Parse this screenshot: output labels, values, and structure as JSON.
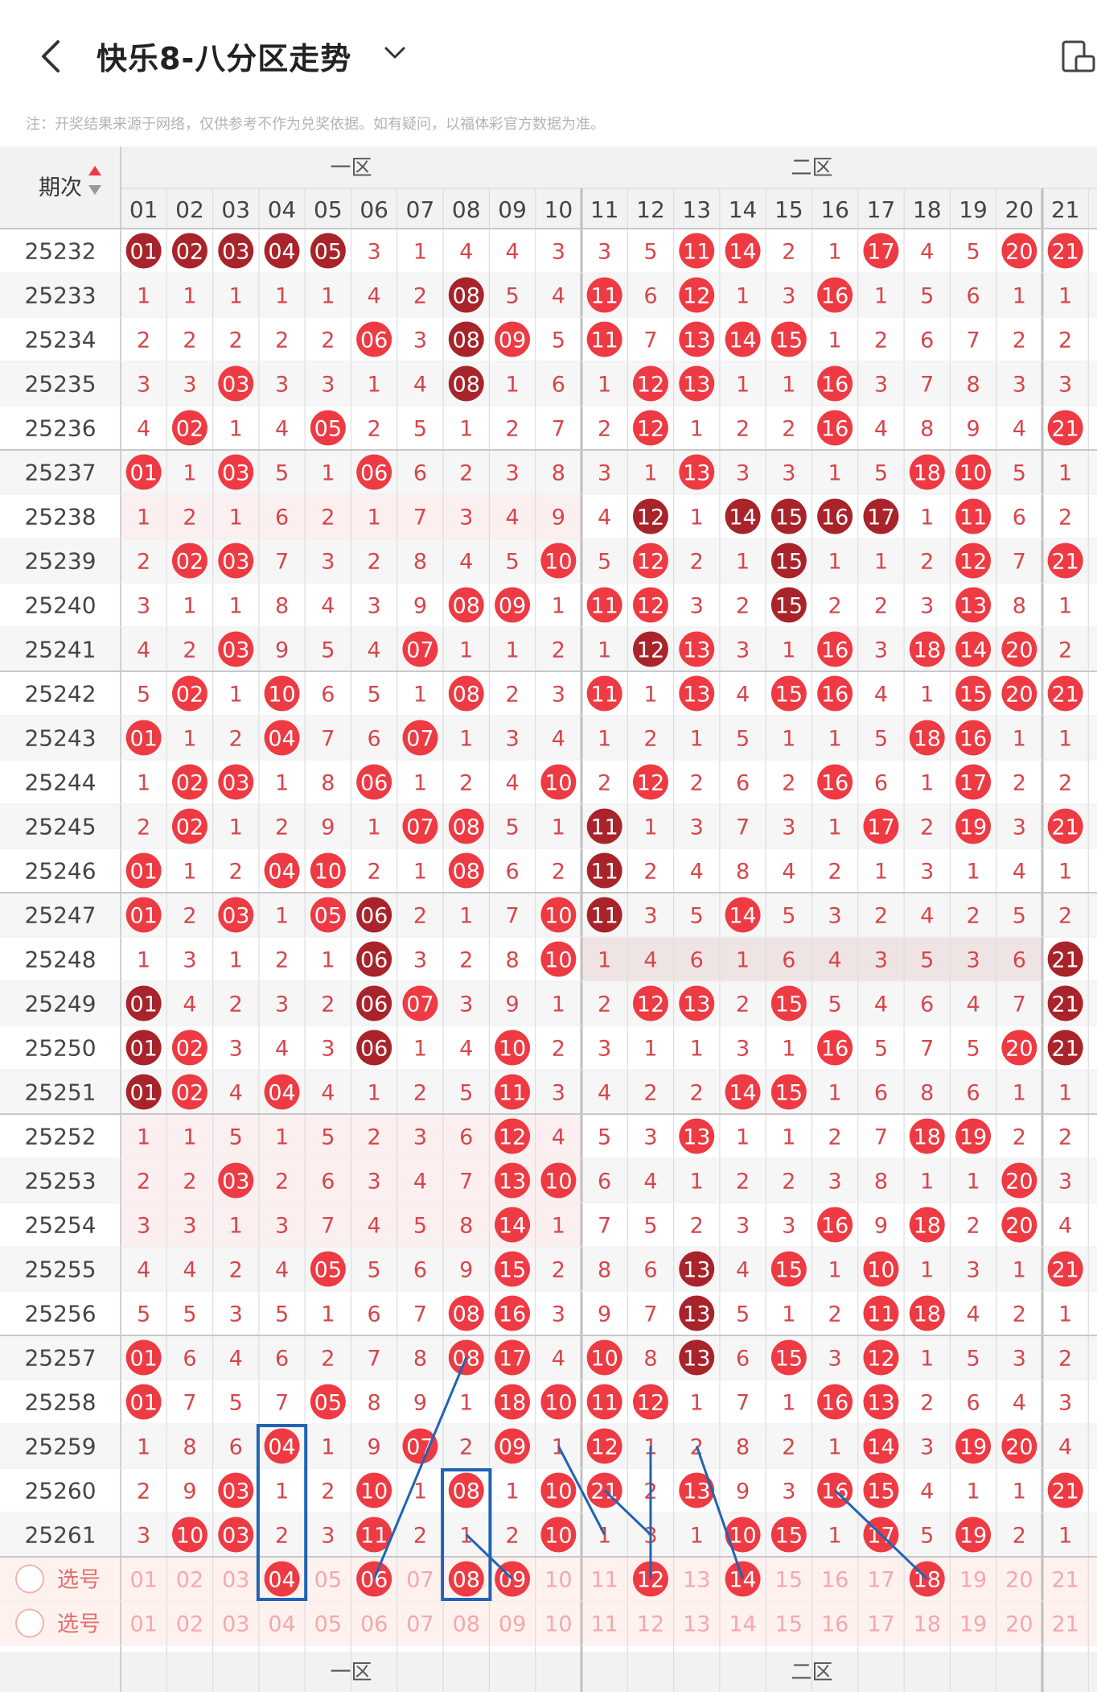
{
  "header": {
    "title": "快乐8-八分区走势",
    "back_icon": "back-arrow-icon",
    "dropdown_icon": "chevron-down-icon",
    "device_icon": "device-switch-icon"
  },
  "notice": "注：开奖结果来源于网络，仅供参考不作为兑奖依据。如有疑问，以福体彩官方数据为准。",
  "table": {
    "period_header": "期次",
    "zones": [
      "一区",
      "二区"
    ],
    "columns": [
      "01",
      "02",
      "03",
      "04",
      "05",
      "06",
      "07",
      "08",
      "09",
      "10",
      "11",
      "12",
      "13",
      "14",
      "15",
      "16",
      "17",
      "18",
      "19",
      "20",
      "21"
    ],
    "rows": [
      {
        "period": "25232",
        "cells": [
          "01",
          "02",
          "03",
          "04",
          "05",
          "3",
          "1",
          "4",
          "4",
          "3",
          "3",
          "5",
          "11",
          "14",
          "2",
          "1",
          "17",
          "4",
          "5",
          "20",
          "21"
        ]
      },
      {
        "period": "25233",
        "cells": [
          "1",
          "1",
          "1",
          "1",
          "1",
          "4",
          "2",
          "08",
          "5",
          "4",
          "11",
          "6",
          "12",
          "1",
          "3",
          "16",
          "1",
          "5",
          "6",
          "1",
          "1"
        ]
      },
      {
        "period": "25234",
        "cells": [
          "2",
          "2",
          "2",
          "2",
          "2",
          "06",
          "3",
          "08",
          "09",
          "5",
          "11",
          "7",
          "13",
          "14",
          "15",
          "1",
          "2",
          "6",
          "7",
          "2",
          "2"
        ]
      },
      {
        "period": "25235",
        "cells": [
          "3",
          "3",
          "03",
          "3",
          "3",
          "1",
          "4",
          "08",
          "1",
          "6",
          "1",
          "12",
          "13",
          "1",
          "1",
          "16",
          "3",
          "7",
          "8",
          "3",
          "3"
        ]
      },
      {
        "period": "25236",
        "cells": [
          "4",
          "02",
          "1",
          "4",
          "05",
          "2",
          "5",
          "1",
          "2",
          "7",
          "2",
          "12",
          "1",
          "2",
          "2",
          "16",
          "4",
          "8",
          "9",
          "4",
          "21"
        ]
      },
      {
        "period": "25237",
        "cells": [
          "01",
          "1",
          "03",
          "5",
          "1",
          "06",
          "6",
          "2",
          "3",
          "8",
          "3",
          "1",
          "13",
          "3",
          "3",
          "1",
          "5",
          "18",
          "10",
          "5",
          "1"
        ]
      },
      {
        "period": "25238",
        "cells": [
          "1",
          "2",
          "1",
          "6",
          "2",
          "1",
          "7",
          "3",
          "4",
          "9",
          "4",
          "12",
          "1",
          "14",
          "15",
          "16",
          "17",
          "1",
          "11",
          "6",
          "2"
        ]
      },
      {
        "period": "25239",
        "cells": [
          "2",
          "02",
          "03",
          "7",
          "3",
          "2",
          "8",
          "4",
          "5",
          "10",
          "5",
          "12",
          "2",
          "1",
          "15",
          "1",
          "1",
          "2",
          "12",
          "7",
          "21"
        ]
      },
      {
        "period": "25240",
        "cells": [
          "3",
          "1",
          "1",
          "8",
          "4",
          "3",
          "9",
          "08",
          "09",
          "1",
          "11",
          "12",
          "3",
          "2",
          "15",
          "2",
          "2",
          "3",
          "13",
          "8",
          "1"
        ]
      },
      {
        "period": "25241",
        "cells": [
          "4",
          "2",
          "03",
          "9",
          "5",
          "4",
          "07",
          "1",
          "1",
          "2",
          "1",
          "12",
          "13",
          "3",
          "1",
          "16",
          "3",
          "18",
          "14",
          "20",
          "2"
        ]
      },
      {
        "period": "25242",
        "cells": [
          "5",
          "02",
          "1",
          "10",
          "6",
          "5",
          "1",
          "08",
          "2",
          "3",
          "11",
          "1",
          "13",
          "4",
          "15",
          "16",
          "4",
          "1",
          "15",
          "20",
          "21"
        ]
      },
      {
        "period": "25243",
        "cells": [
          "01",
          "1",
          "2",
          "04",
          "7",
          "6",
          "07",
          "1",
          "3",
          "4",
          "1",
          "2",
          "1",
          "5",
          "1",
          "1",
          "5",
          "18",
          "16",
          "1",
          "1"
        ]
      },
      {
        "period": "25244",
        "cells": [
          "1",
          "02",
          "03",
          "1",
          "8",
          "06",
          "1",
          "2",
          "4",
          "10",
          "2",
          "12",
          "2",
          "6",
          "2",
          "16",
          "6",
          "1",
          "17",
          "2",
          "2"
        ]
      },
      {
        "period": "25245",
        "cells": [
          "2",
          "02",
          "1",
          "2",
          "9",
          "1",
          "07",
          "08",
          "5",
          "1",
          "11",
          "1",
          "3",
          "7",
          "3",
          "1",
          "17",
          "2",
          "19",
          "3",
          "21"
        ]
      },
      {
        "period": "25246",
        "cells": [
          "01",
          "1",
          "2",
          "04",
          "10",
          "2",
          "1",
          "08",
          "6",
          "2",
          "11",
          "2",
          "4",
          "8",
          "4",
          "2",
          "1",
          "3",
          "1",
          "4",
          "1"
        ]
      },
      {
        "period": "25247",
        "cells": [
          "01",
          "2",
          "03",
          "1",
          "05",
          "06",
          "2",
          "1",
          "7",
          "10",
          "11",
          "3",
          "5",
          "14",
          "5",
          "3",
          "2",
          "4",
          "2",
          "5",
          "2"
        ]
      },
      {
        "period": "25248",
        "cells": [
          "1",
          "3",
          "1",
          "2",
          "1",
          "06",
          "3",
          "2",
          "8",
          "10",
          "1",
          "4",
          "6",
          "1",
          "6",
          "4",
          "3",
          "5",
          "3",
          "6",
          "21"
        ]
      },
      {
        "period": "25249",
        "cells": [
          "01",
          "4",
          "2",
          "3",
          "2",
          "06",
          "07",
          "3",
          "9",
          "1",
          "2",
          "12",
          "13",
          "2",
          "15",
          "5",
          "4",
          "6",
          "4",
          "7",
          "21"
        ]
      },
      {
        "period": "25250",
        "cells": [
          "01",
          "02",
          "3",
          "4",
          "3",
          "06",
          "1",
          "4",
          "10",
          "2",
          "3",
          "1",
          "1",
          "3",
          "1",
          "16",
          "5",
          "7",
          "5",
          "20",
          "21"
        ]
      },
      {
        "period": "25251",
        "cells": [
          "01",
          "02",
          "4",
          "04",
          "4",
          "1",
          "2",
          "5",
          "11",
          "3",
          "4",
          "2",
          "2",
          "14",
          "15",
          "1",
          "6",
          "8",
          "6",
          "1",
          "1"
        ]
      },
      {
        "period": "25252",
        "cells": [
          "1",
          "1",
          "5",
          "1",
          "5",
          "2",
          "3",
          "6",
          "12",
          "4",
          "5",
          "3",
          "13",
          "1",
          "1",
          "2",
          "7",
          "18",
          "19",
          "2",
          "2"
        ]
      },
      {
        "period": "25253",
        "cells": [
          "2",
          "2",
          "03",
          "2",
          "6",
          "3",
          "4",
          "7",
          "13",
          "10",
          "6",
          "4",
          "1",
          "2",
          "2",
          "3",
          "8",
          "1",
          "1",
          "20",
          "3"
        ]
      },
      {
        "period": "25254",
        "cells": [
          "3",
          "3",
          "1",
          "3",
          "7",
          "4",
          "5",
          "8",
          "14",
          "1",
          "7",
          "5",
          "2",
          "3",
          "3",
          "16",
          "9",
          "18",
          "2",
          "20",
          "4"
        ]
      },
      {
        "period": "25255",
        "cells": [
          "4",
          "4",
          "2",
          "4",
          "05",
          "5",
          "6",
          "9",
          "15",
          "2",
          "8",
          "6",
          "13",
          "4",
          "15",
          "1",
          "10",
          "1",
          "3",
          "1",
          "21"
        ]
      },
      {
        "period": "25256",
        "cells": [
          "5",
          "5",
          "3",
          "5",
          "1",
          "6",
          "7",
          "08",
          "16",
          "3",
          "9",
          "7",
          "13",
          "5",
          "1",
          "2",
          "11",
          "18",
          "4",
          "2",
          "1"
        ]
      },
      {
        "period": "25257",
        "cells": [
          "01",
          "6",
          "4",
          "6",
          "2",
          "7",
          "8",
          "08",
          "17",
          "4",
          "10",
          "8",
          "13",
          "6",
          "15",
          "3",
          "12",
          "1",
          "5",
          "3",
          "2"
        ]
      },
      {
        "period": "25258",
        "cells": [
          "01",
          "7",
          "5",
          "7",
          "05",
          "8",
          "9",
          "1",
          "18",
          "10",
          "11",
          "12",
          "1",
          "7",
          "1",
          "16",
          "13",
          "2",
          "6",
          "4",
          "3"
        ]
      },
      {
        "period": "25259",
        "cells": [
          "1",
          "8",
          "6",
          "04",
          "1",
          "9",
          "07",
          "2",
          "09",
          "1",
          "12",
          "1",
          "2",
          "8",
          "2",
          "1",
          "14",
          "3",
          "19",
          "20",
          "4"
        ]
      },
      {
        "period": "25260",
        "cells": [
          "2",
          "9",
          "03",
          "1",
          "2",
          "10",
          "1",
          "08",
          "1",
          "10",
          "21",
          "2",
          "13",
          "9",
          "3",
          "16",
          "15",
          "4",
          "1",
          "1",
          "21"
        ]
      },
      {
        "period": "25261",
        "cells": [
          "3",
          "10",
          "03",
          "2",
          "3",
          "11",
          "2",
          "1",
          "2",
          "10",
          "1",
          "3",
          "1",
          "10",
          "15",
          "1",
          "17",
          "5",
          "19",
          "2",
          "1"
        ]
      }
    ],
    "pick_rows": [
      {
        "label": "选号",
        "selected": [
          "04",
          "06",
          "08",
          "09",
          "12",
          "14",
          "18"
        ]
      },
      {
        "label": "选号",
        "selected": []
      }
    ]
  },
  "colors": {
    "red": "#EE3A43",
    "dark_red": "#A8232A",
    "grid_line": "#DDDDDD",
    "header_bg": "#F2F2F2",
    "annotation_blue": "#1F64B4",
    "omit_text": "#D8454B"
  }
}
